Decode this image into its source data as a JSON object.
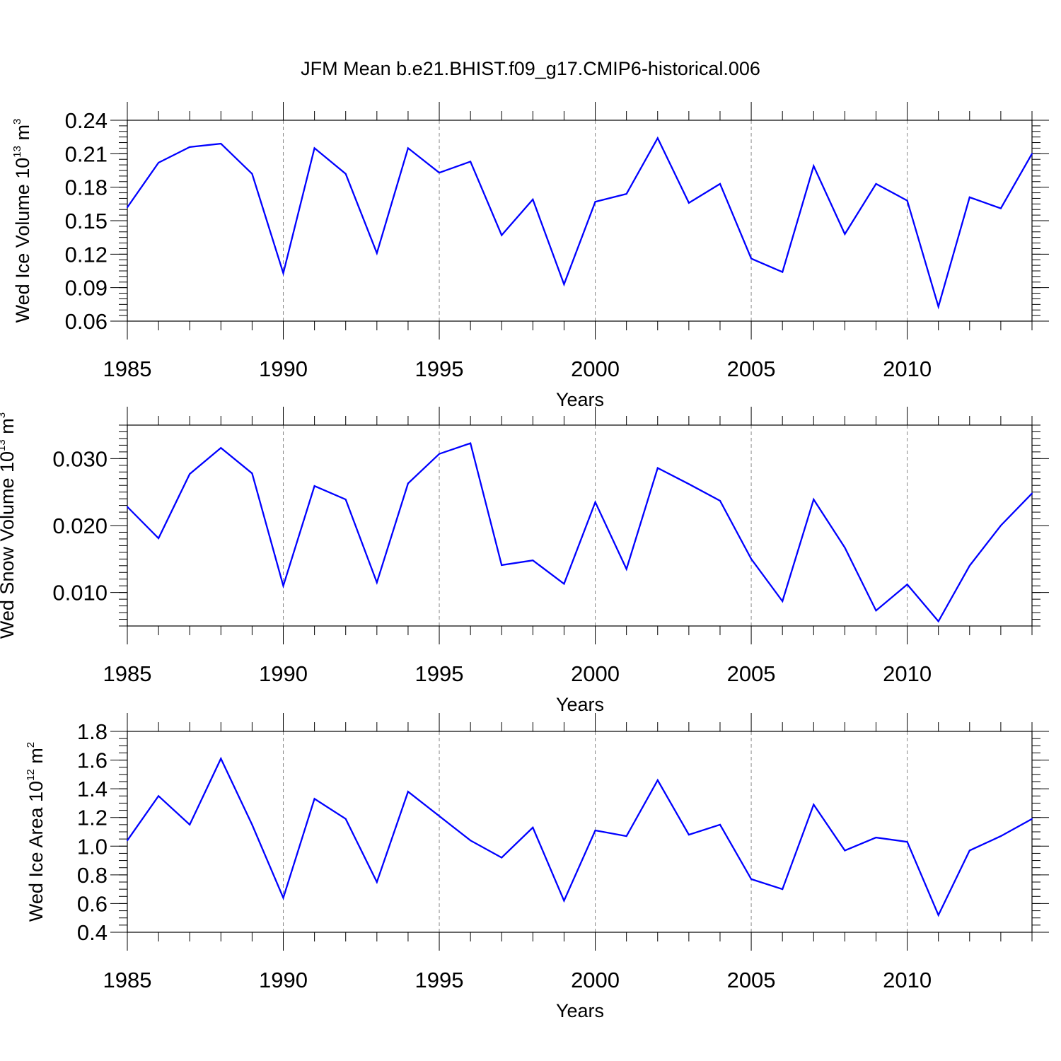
{
  "chart_data": [
    {
      "type": "line",
      "title": "JFM Mean b.e21.BHIST.f09_g17.CMIP6-historical.006",
      "xlabel": "Years",
      "ylabel": "Wed Ice Volume 10",
      "ylabel_exp": "13",
      "ylabel_unit": " m",
      "ylabel_unit_exp": "3",
      "xlim": [
        1985,
        2014
      ],
      "ylim": [
        0.06,
        0.24
      ],
      "yticks": [
        0.06,
        0.09,
        0.12,
        0.15,
        0.18,
        0.21,
        0.24
      ],
      "ytick_labels": [
        "0.06",
        "0.09",
        "0.12",
        "0.15",
        "0.18",
        "0.21",
        "0.24"
      ],
      "xticks": [
        1985,
        1990,
        1995,
        2000,
        2005,
        2010
      ],
      "xtick_labels": [
        "1985",
        "1990",
        "1995",
        "2000",
        "2005",
        "2010"
      ],
      "line_color": "#0000ff",
      "x": [
        1985,
        1986,
        1987,
        1988,
        1989,
        1990,
        1991,
        1992,
        1993,
        1994,
        1995,
        1996,
        1997,
        1998,
        1999,
        2000,
        2001,
        2002,
        2003,
        2004,
        2005,
        2006,
        2007,
        2008,
        2009,
        2010,
        2011,
        2012,
        2013,
        2014
      ],
      "values": [
        0.162,
        0.202,
        0.216,
        0.219,
        0.192,
        0.103,
        0.215,
        0.192,
        0.121,
        0.215,
        0.193,
        0.203,
        0.137,
        0.169,
        0.093,
        0.167,
        0.174,
        0.224,
        0.166,
        0.183,
        0.116,
        0.104,
        0.199,
        0.138,
        0.183,
        0.168,
        0.073,
        0.171,
        0.161,
        0.21
      ]
    },
    {
      "type": "line",
      "title": "",
      "xlabel": "Years",
      "ylabel": "Wed Snow Volume 10",
      "ylabel_exp": "13",
      "ylabel_unit": " m",
      "ylabel_unit_exp": "3",
      "xlim": [
        1985,
        2014
      ],
      "ylim": [
        0.005,
        0.035
      ],
      "yticks": [
        0.01,
        0.02,
        0.03
      ],
      "ytick_labels": [
        "0.010",
        "0.020",
        "0.030"
      ],
      "xticks": [
        1985,
        1990,
        1995,
        2000,
        2005,
        2010
      ],
      "xtick_labels": [
        "1985",
        "1990",
        "1995",
        "2000",
        "2005",
        "2010"
      ],
      "line_color": "#0000ff",
      "x": [
        1985,
        1986,
        1987,
        1988,
        1989,
        1990,
        1991,
        1992,
        1993,
        1994,
        1995,
        1996,
        1997,
        1998,
        1999,
        2000,
        2001,
        2002,
        2003,
        2004,
        2005,
        2006,
        2007,
        2008,
        2009,
        2010,
        2011,
        2012,
        2013,
        2014
      ],
      "values": [
        0.0228,
        0.0181,
        0.0277,
        0.0316,
        0.0278,
        0.011,
        0.0259,
        0.0239,
        0.0115,
        0.0263,
        0.0307,
        0.0323,
        0.0141,
        0.0148,
        0.0113,
        0.0235,
        0.0135,
        0.0286,
        0.0262,
        0.0237,
        0.015,
        0.0087,
        0.0239,
        0.0167,
        0.0073,
        0.0112,
        0.0057,
        0.014,
        0.02,
        0.0248
      ]
    },
    {
      "type": "line",
      "title": "",
      "xlabel": "Years",
      "ylabel": "Wed Ice Area 10",
      "ylabel_exp": "12",
      "ylabel_unit": " m",
      "ylabel_unit_exp": "2",
      "xlim": [
        1985,
        2014
      ],
      "ylim": [
        0.4,
        1.8
      ],
      "yticks": [
        0.4,
        0.6,
        0.8,
        1.0,
        1.2,
        1.4,
        1.6,
        1.8
      ],
      "ytick_labels": [
        "0.4",
        "0.6",
        "0.8",
        "1.0",
        "1.2",
        "1.4",
        "1.6",
        "1.8"
      ],
      "xticks": [
        1985,
        1990,
        1995,
        2000,
        2005,
        2010
      ],
      "xtick_labels": [
        "1985",
        "1990",
        "1995",
        "2000",
        "2005",
        "2010"
      ],
      "line_color": "#0000ff",
      "x": [
        1985,
        1986,
        1987,
        1988,
        1989,
        1990,
        1991,
        1992,
        1993,
        1994,
        1995,
        1996,
        1997,
        1998,
        1999,
        2000,
        2001,
        2002,
        2003,
        2004,
        2005,
        2006,
        2007,
        2008,
        2009,
        2010,
        2011,
        2012,
        2013,
        2014
      ],
      "values": [
        1.04,
        1.35,
        1.15,
        1.61,
        1.15,
        0.64,
        1.33,
        1.19,
        0.75,
        1.38,
        1.21,
        1.04,
        0.92,
        1.13,
        0.62,
        1.11,
        1.07,
        1.46,
        1.08,
        1.15,
        0.77,
        0.7,
        1.29,
        0.97,
        1.06,
        1.03,
        0.52,
        0.97,
        1.07,
        1.19
      ]
    }
  ]
}
